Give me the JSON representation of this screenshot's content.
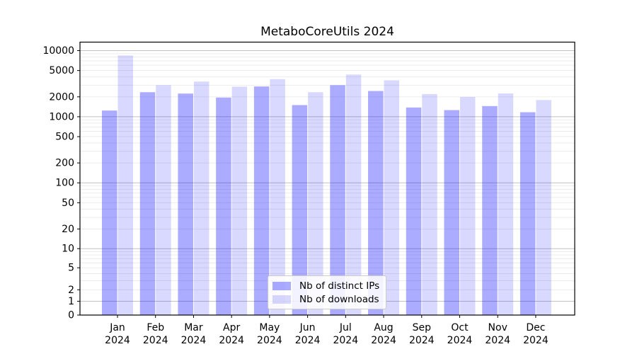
{
  "chart_data": {
    "type": "bar",
    "title": "MetaboCoreUtils 2024",
    "xlabel": "",
    "ylabel": "",
    "y_scale": "symlog",
    "ylim": [
      0,
      13400
    ],
    "grid": "horizontal major and minor gridlines",
    "legend_position": "lower center",
    "background_color": "#ffffff",
    "categories": [
      "Jan 2024",
      "Feb 2024",
      "Mar 2024",
      "Apr 2024",
      "May 2024",
      "Jun 2024",
      "Jul 2024",
      "Aug 2024",
      "Sep 2024",
      "Oct 2024",
      "Nov 2024",
      "Dec 2024"
    ],
    "y_ticks": [
      0,
      1,
      2,
      5,
      10,
      20,
      50,
      100,
      200,
      500,
      1000,
      2000,
      5000,
      10000
    ],
    "series": [
      {
        "name": "Nb of distinct IPs",
        "base_color": "#0000ff",
        "fill_alpha": 0.33,
        "rendered_color": "#a9a9f0",
        "values": [
          1240,
          2350,
          2240,
          1950,
          2870,
          1500,
          3000,
          2450,
          1380,
          1260,
          1450,
          1170
        ]
      },
      {
        "name": "Nb of downloads",
        "base_color": "#0000ff",
        "fill_alpha": 0.15,
        "rendered_color": "#dcdcf8",
        "values": [
          8450,
          3000,
          3400,
          2850,
          3700,
          2350,
          4350,
          3550,
          2200,
          1990,
          2250,
          1790
        ]
      }
    ]
  }
}
